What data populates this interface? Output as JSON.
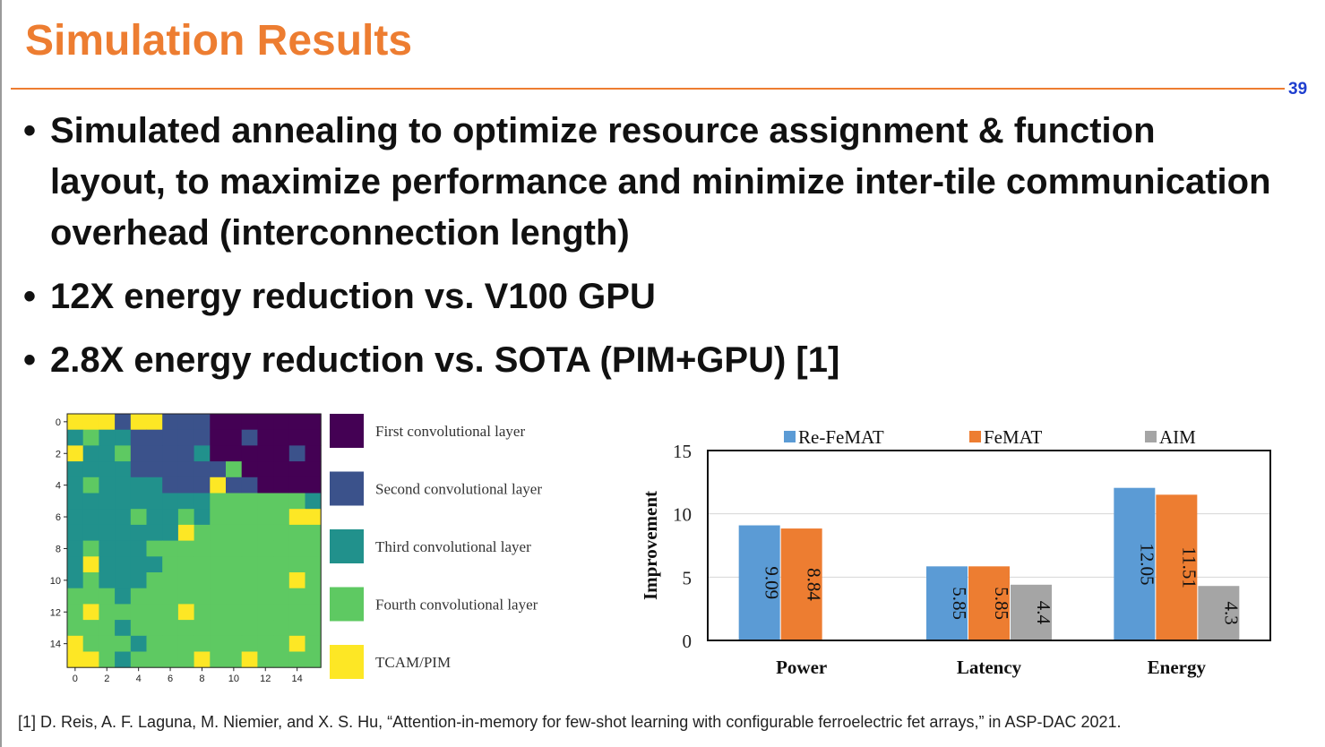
{
  "slide": {
    "title": "Simulation Results",
    "number": "39",
    "bullets": [
      "Simulated annealing to optimize resource assignment & function layout, to maximize performance and minimize inter-tile communication overhead (interconnection length)",
      "12X energy reduction vs. V100 GPU",
      "2.8X energy reduction vs. SOTA (PIM+GPU) [1]"
    ],
    "footnote": "[1] D. Reis, A. F. Laguna, M. Niemier, and X. S. Hu, “Attention-in-memory for few-shot learning with configurable ferroelectric fet arrays,” in ASP-DAC 2021."
  },
  "chart_data": [
    {
      "type": "heatmap",
      "xticks": [
        "0",
        "2",
        "4",
        "6",
        "8",
        "10",
        "12",
        "14"
      ],
      "yticks": [
        "0",
        "2",
        "4",
        "6",
        "8",
        "10",
        "12",
        "14"
      ],
      "legend": [
        {
          "label": "First convolutional layer",
          "color": "#440154"
        },
        {
          "label": "Second convolutional layer",
          "color": "#3B528B"
        },
        {
          "label": "Third convolutional layer",
          "color": "#21918C"
        },
        {
          "label": "Fourth convolutional layer",
          "color": "#5EC962"
        },
        {
          "label": "TCAM/PIM",
          "color": "#FDE725"
        }
      ],
      "grid": [
        [
          4,
          4,
          4,
          1,
          4,
          4,
          1,
          1,
          1,
          0,
          0,
          0,
          0,
          0,
          0,
          0
        ],
        [
          2,
          3,
          2,
          2,
          1,
          1,
          1,
          1,
          1,
          0,
          0,
          1,
          0,
          0,
          0,
          0
        ],
        [
          4,
          2,
          2,
          3,
          1,
          1,
          1,
          1,
          2,
          0,
          0,
          0,
          0,
          0,
          1,
          0
        ],
        [
          2,
          2,
          2,
          2,
          1,
          1,
          1,
          1,
          1,
          1,
          3,
          0,
          0,
          0,
          0,
          0
        ],
        [
          2,
          3,
          2,
          2,
          2,
          2,
          1,
          1,
          1,
          4,
          1,
          1,
          0,
          0,
          0,
          0
        ],
        [
          2,
          2,
          2,
          2,
          2,
          2,
          2,
          2,
          2,
          3,
          3,
          3,
          3,
          3,
          3,
          2
        ],
        [
          2,
          2,
          2,
          2,
          3,
          2,
          2,
          3,
          2,
          3,
          3,
          3,
          3,
          3,
          4,
          4
        ],
        [
          2,
          2,
          2,
          2,
          2,
          2,
          2,
          4,
          3,
          3,
          3,
          3,
          3,
          3,
          3,
          3
        ],
        [
          2,
          3,
          2,
          2,
          2,
          3,
          3,
          3,
          3,
          3,
          3,
          3,
          3,
          3,
          3,
          3
        ],
        [
          2,
          4,
          2,
          2,
          2,
          2,
          3,
          3,
          3,
          3,
          3,
          3,
          3,
          3,
          3,
          3
        ],
        [
          2,
          3,
          2,
          2,
          2,
          3,
          3,
          3,
          3,
          3,
          3,
          3,
          3,
          3,
          4,
          3
        ],
        [
          3,
          3,
          3,
          2,
          3,
          3,
          3,
          3,
          3,
          3,
          3,
          3,
          3,
          3,
          3,
          3
        ],
        [
          3,
          4,
          3,
          3,
          3,
          3,
          3,
          4,
          3,
          3,
          3,
          3,
          3,
          3,
          3,
          3
        ],
        [
          3,
          3,
          3,
          2,
          3,
          3,
          3,
          3,
          3,
          3,
          3,
          3,
          3,
          3,
          3,
          3
        ],
        [
          4,
          3,
          3,
          3,
          2,
          3,
          3,
          3,
          3,
          3,
          3,
          3,
          3,
          3,
          4,
          3
        ],
        [
          4,
          4,
          3,
          2,
          3,
          3,
          3,
          3,
          4,
          3,
          3,
          4,
          3,
          3,
          3,
          3
        ]
      ]
    },
    {
      "type": "bar",
      "categories": [
        "Power",
        "Latency",
        "Energy"
      ],
      "series": [
        {
          "name": "Re-FeMAT",
          "color": "#5B9BD5",
          "values": [
            9.09,
            5.85,
            12.05
          ]
        },
        {
          "name": "FeMAT",
          "color": "#ED7D31",
          "values": [
            8.84,
            5.85,
            11.51
          ]
        },
        {
          "name": "AIM",
          "color": "#A5A5A5",
          "values": [
            null,
            4.4,
            4.3
          ]
        }
      ],
      "ylabel": "Improvement",
      "ylim": [
        0,
        15
      ],
      "yticks": [
        0,
        5,
        10,
        15
      ],
      "legend_position": "top"
    }
  ]
}
